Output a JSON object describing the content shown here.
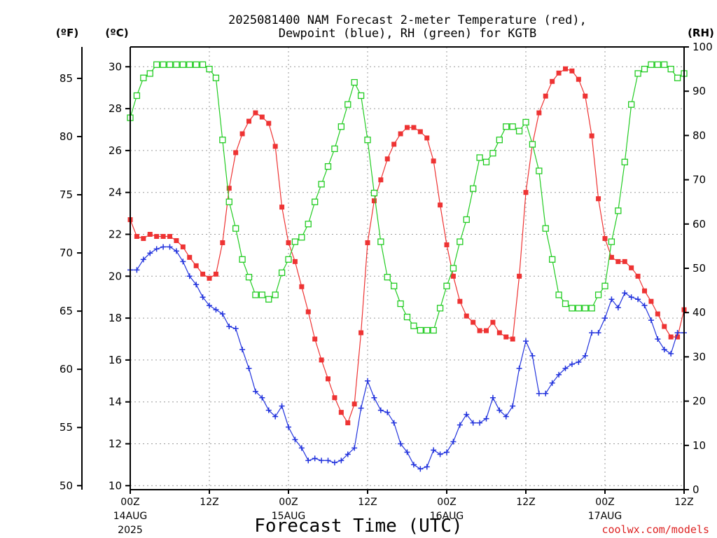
{
  "chart_data": {
    "type": "line",
    "title_line1": "2025081400 NAM Forecast 2-meter Temperature (red),",
    "title_line2": "Dewpoint (blue), RH (green) for KGTB",
    "units": {
      "fahrenheit": "(ºF)",
      "celsius": "(ºC)",
      "rh": "(RH)"
    },
    "xlabel": "Forecast Time (UTC)",
    "credit": "coolwx.com/models",
    "colors": {
      "temperature": "#ee3333",
      "dewpoint": "#2233dd",
      "rh": "#22cc22",
      "credit": "#dd2222"
    },
    "celsius_axis": {
      "ylim": [
        10,
        31
      ],
      "ticks": [
        "10",
        "12",
        "14",
        "16",
        "18",
        "20",
        "22",
        "24",
        "26",
        "28",
        "30"
      ]
    },
    "fahrenheit_axis": {
      "ticks": [
        "50",
        "55",
        "60",
        "65",
        "70",
        "75",
        "80",
        "85"
      ]
    },
    "rh_axis": {
      "ylim": [
        0,
        100
      ],
      "ticks": [
        "0",
        "10",
        "20",
        "30",
        "40",
        "50",
        "60",
        "70",
        "80",
        "90",
        "100"
      ]
    },
    "x_range_hours": [
      0,
      84
    ],
    "x_ticks": [
      {
        "label": "00Z",
        "date": "14AUG",
        "year": "2025"
      },
      {
        "label": "12Z",
        "date": "",
        "year": ""
      },
      {
        "label": "00Z",
        "date": "15AUG",
        "year": ""
      },
      {
        "label": "12Z",
        "date": "",
        "year": ""
      },
      {
        "label": "00Z",
        "date": "16AUG",
        "year": ""
      },
      {
        "label": "12Z",
        "date": "",
        "year": ""
      },
      {
        "label": "00Z",
        "date": "17AUG",
        "year": ""
      },
      {
        "label": "12Z",
        "date": "",
        "year": ""
      }
    ],
    "hours": [
      0,
      1,
      2,
      3,
      4,
      5,
      6,
      7,
      8,
      9,
      10,
      11,
      12,
      13,
      14,
      15,
      16,
      17,
      18,
      19,
      20,
      21,
      22,
      23,
      24,
      25,
      26,
      27,
      28,
      29,
      30,
      31,
      32,
      33,
      34,
      35,
      36,
      37,
      38,
      39,
      40,
      41,
      42,
      43,
      44,
      45,
      46,
      47,
      48,
      49,
      50,
      51,
      52,
      53,
      54,
      55,
      56,
      57,
      58,
      59,
      60,
      61,
      62,
      63,
      64,
      65,
      66,
      67,
      68,
      69,
      70,
      71,
      72,
      73,
      74,
      75,
      76,
      77,
      78,
      79,
      80,
      81,
      82,
      83,
      84
    ],
    "series": [
      {
        "name": "Temperature",
        "key": "temperature",
        "values": [
          22.7,
          21.9,
          21.8,
          22.0,
          21.9,
          21.9,
          21.9,
          21.7,
          21.4,
          20.9,
          20.5,
          20.1,
          19.9,
          20.1,
          21.6,
          24.2,
          25.9,
          26.8,
          27.4,
          27.8,
          27.6,
          27.3,
          26.2,
          23.3,
          21.6,
          20.7,
          19.5,
          18.3,
          17.0,
          16.0,
          15.1,
          14.2,
          13.5,
          13.0,
          13.9,
          17.3,
          21.6,
          23.6,
          24.6,
          25.6,
          26.3,
          26.8,
          27.1,
          27.1,
          26.9,
          26.6,
          25.5,
          23.4,
          21.5,
          20.0,
          18.8,
          18.1,
          17.8,
          17.4,
          17.4,
          17.8,
          17.3,
          17.1,
          17.0,
          20.0,
          24.0,
          26.3,
          27.8,
          28.6,
          29.3,
          29.7,
          29.9,
          29.8,
          29.4,
          28.6,
          26.7,
          23.7,
          21.8,
          20.9,
          20.7,
          20.7,
          20.4,
          20.0,
          19.3,
          18.8,
          18.2,
          17.6,
          17.1,
          17.1,
          18.4
        ]
      },
      {
        "name": "Dewpoint",
        "key": "dewpoint",
        "values": [
          20.3,
          20.3,
          20.8,
          21.1,
          21.3,
          21.4,
          21.4,
          21.2,
          20.7,
          20.0,
          19.6,
          19.0,
          18.6,
          18.4,
          18.2,
          17.6,
          17.5,
          16.5,
          15.6,
          14.5,
          14.2,
          13.6,
          13.3,
          13.8,
          12.8,
          12.2,
          11.8,
          11.2,
          11.3,
          11.2,
          11.2,
          11.1,
          11.2,
          11.5,
          11.8,
          13.7,
          15.0,
          14.2,
          13.6,
          13.5,
          13.0,
          12.0,
          11.6,
          11.0,
          10.8,
          10.9,
          11.7,
          11.5,
          11.6,
          12.1,
          12.9,
          13.4,
          13.0,
          13.0,
          13.2,
          14.2,
          13.6,
          13.3,
          13.8,
          15.6,
          16.9,
          16.2,
          14.4,
          14.4,
          14.9,
          15.3,
          15.6,
          15.8,
          15.9,
          16.2,
          17.3,
          17.3,
          18.0,
          18.9,
          18.5,
          19.2,
          19.0,
          18.9,
          18.6,
          17.9,
          17.0,
          16.5,
          16.3,
          17.3,
          17.3
        ]
      },
      {
        "name": "RH",
        "key": "rh",
        "values": [
          84,
          89,
          93,
          94,
          96,
          96,
          96,
          96,
          96,
          96,
          96,
          96,
          95,
          93,
          79,
          65,
          59,
          52,
          48,
          44,
          44,
          43,
          44,
          49,
          52,
          56,
          57,
          60,
          65,
          69,
          73,
          77,
          82,
          87,
          92,
          89,
          79,
          67,
          56,
          48,
          46,
          42,
          39,
          37,
          36,
          36,
          36,
          41,
          46,
          50,
          56,
          61,
          68,
          75,
          74,
          76,
          79,
          82,
          82,
          81,
          83,
          78,
          72,
          59,
          52,
          44,
          42,
          41,
          41,
          41,
          41,
          44,
          46,
          56,
          63,
          74,
          87,
          94,
          95,
          96,
          96,
          96,
          95,
          93,
          94
        ]
      }
    ]
  }
}
